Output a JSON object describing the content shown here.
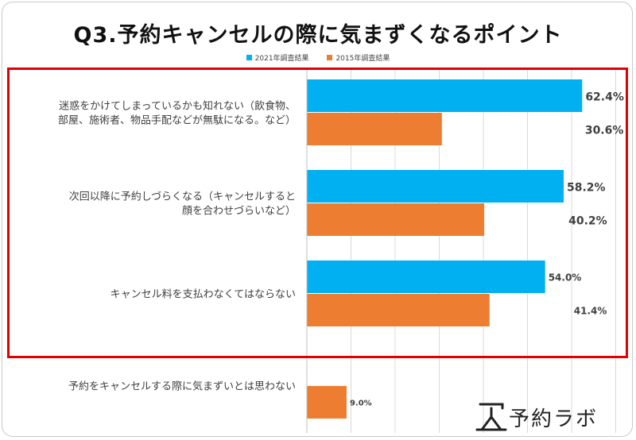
{
  "title": "Q3.予約キャンセルの際に気まずくなるポイント",
  "logo": {
    "text": "予約ラボ"
  },
  "colors": {
    "series2021": "#00b0f0",
    "series2015": "#ed7d31",
    "highlight": "#e00000",
    "grid": "#d9d9d9"
  },
  "chart_data": {
    "type": "bar",
    "orientation": "horizontal",
    "title": "Q3.予約キャンセルの際に気まずくなるポイント",
    "xlim": [
      0,
      70
    ],
    "legend_position": "top-center",
    "categories": [
      [
        "迷惑をかけてしまっているかも知れない（飲食物、",
        "部屋、施術者、物品手配などが無駄になる。など）"
      ],
      [
        "次回以降に予約しづらくなる（キャンセルすると",
        "顔を合わせづらいなど）"
      ],
      [
        "キャンセル料を支払わなくてはならない"
      ],
      [
        "予約をキャンセルする際に気まずいとは思わない"
      ]
    ],
    "series": [
      {
        "name": "2021年調査結果",
        "values": [
          62.4,
          58.2,
          54.0,
          null
        ],
        "labels": [
          "62.4%",
          "58.2%",
          "54.0%",
          ""
        ]
      },
      {
        "name": "2015年調査結果",
        "values": [
          30.6,
          40.2,
          41.4,
          9.0
        ],
        "labels": [
          "30.6%",
          "40.2%",
          "41.4%",
          "9.0%"
        ]
      }
    ]
  }
}
